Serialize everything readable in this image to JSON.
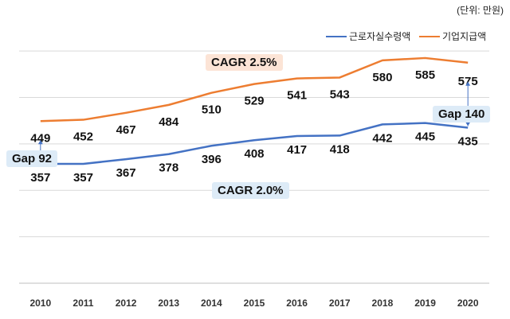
{
  "unit_note": "(단위: 만원)",
  "chart_data": {
    "type": "line",
    "x": [
      "2010",
      "2011",
      "2012",
      "2013",
      "2014",
      "2015",
      "2016",
      "2017",
      "2018",
      "2019",
      "2020"
    ],
    "series": [
      {
        "name": "근로자실수령액",
        "color": "#4472c4",
        "values": [
          357,
          357,
          367,
          378,
          396,
          408,
          417,
          418,
          442,
          445,
          435
        ]
      },
      {
        "name": "기업지급액",
        "color": "#ed7d31",
        "values": [
          449,
          452,
          467,
          484,
          510,
          529,
          541,
          543,
          580,
          585,
          575
        ]
      }
    ],
    "ylim": [
      100,
      650
    ],
    "grid": true,
    "legend": "top-right",
    "annotations": {
      "cagr_orange": {
        "text": "CAGR 2.5%",
        "bg": "#fce4d6"
      },
      "cagr_blue": {
        "text": "CAGR 2.0%",
        "bg": "#ddebf7"
      },
      "gap_start": {
        "text": "Gap 92",
        "bg": "#ddebf7"
      },
      "gap_end": {
        "text": "Gap 140",
        "bg": "#ddebf7"
      }
    }
  }
}
